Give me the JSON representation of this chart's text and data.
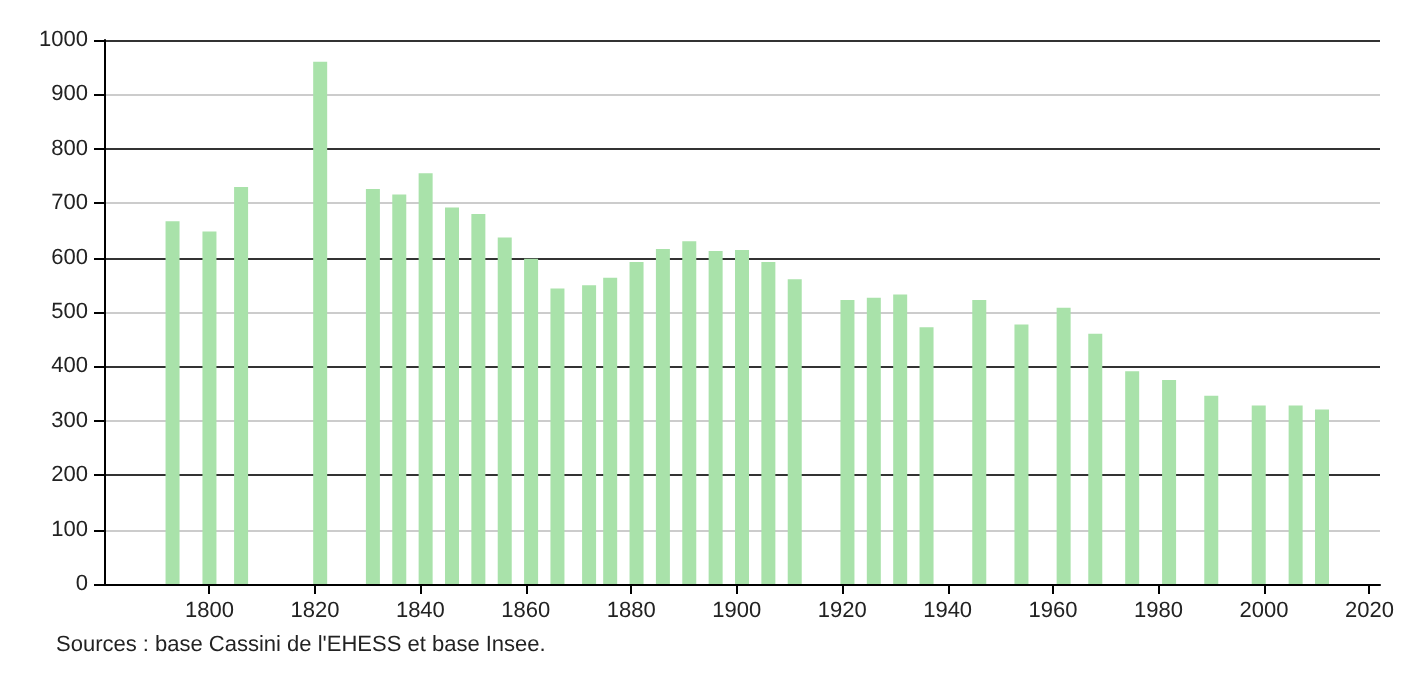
{
  "chart_data": {
    "type": "bar",
    "x": [
      1793,
      1800,
      1806,
      1821,
      1831,
      1836,
      1841,
      1846,
      1851,
      1856,
      1861,
      1866,
      1872,
      1876,
      1881,
      1886,
      1891,
      1896,
      1901,
      1906,
      1911,
      1921,
      1926,
      1931,
      1936,
      1946,
      1954,
      1962,
      1968,
      1975,
      1982,
      1990,
      1999,
      2006,
      2011
    ],
    "values": [
      667,
      648,
      730,
      960,
      726,
      716,
      755,
      692,
      680,
      637,
      598,
      543,
      549,
      563,
      592,
      616,
      630,
      612,
      614,
      592,
      560,
      522,
      526,
      532,
      472,
      522,
      477,
      508,
      460,
      391,
      375,
      346,
      328,
      328,
      321
    ],
    "color": "#a9e2aa",
    "xlim": [
      1780,
      2022
    ],
    "xticks": [
      1800,
      1820,
      1840,
      1860,
      1880,
      1900,
      1920,
      1940,
      1960,
      1980,
      2000,
      2020
    ],
    "ylim": [
      0,
      1000
    ],
    "yticks": [
      0,
      100,
      200,
      300,
      400,
      500,
      600,
      700,
      800,
      900,
      1000
    ],
    "grid": "y",
    "annotations": [
      "Sources : base Cassini de l'EHESS et base Insee."
    ]
  }
}
